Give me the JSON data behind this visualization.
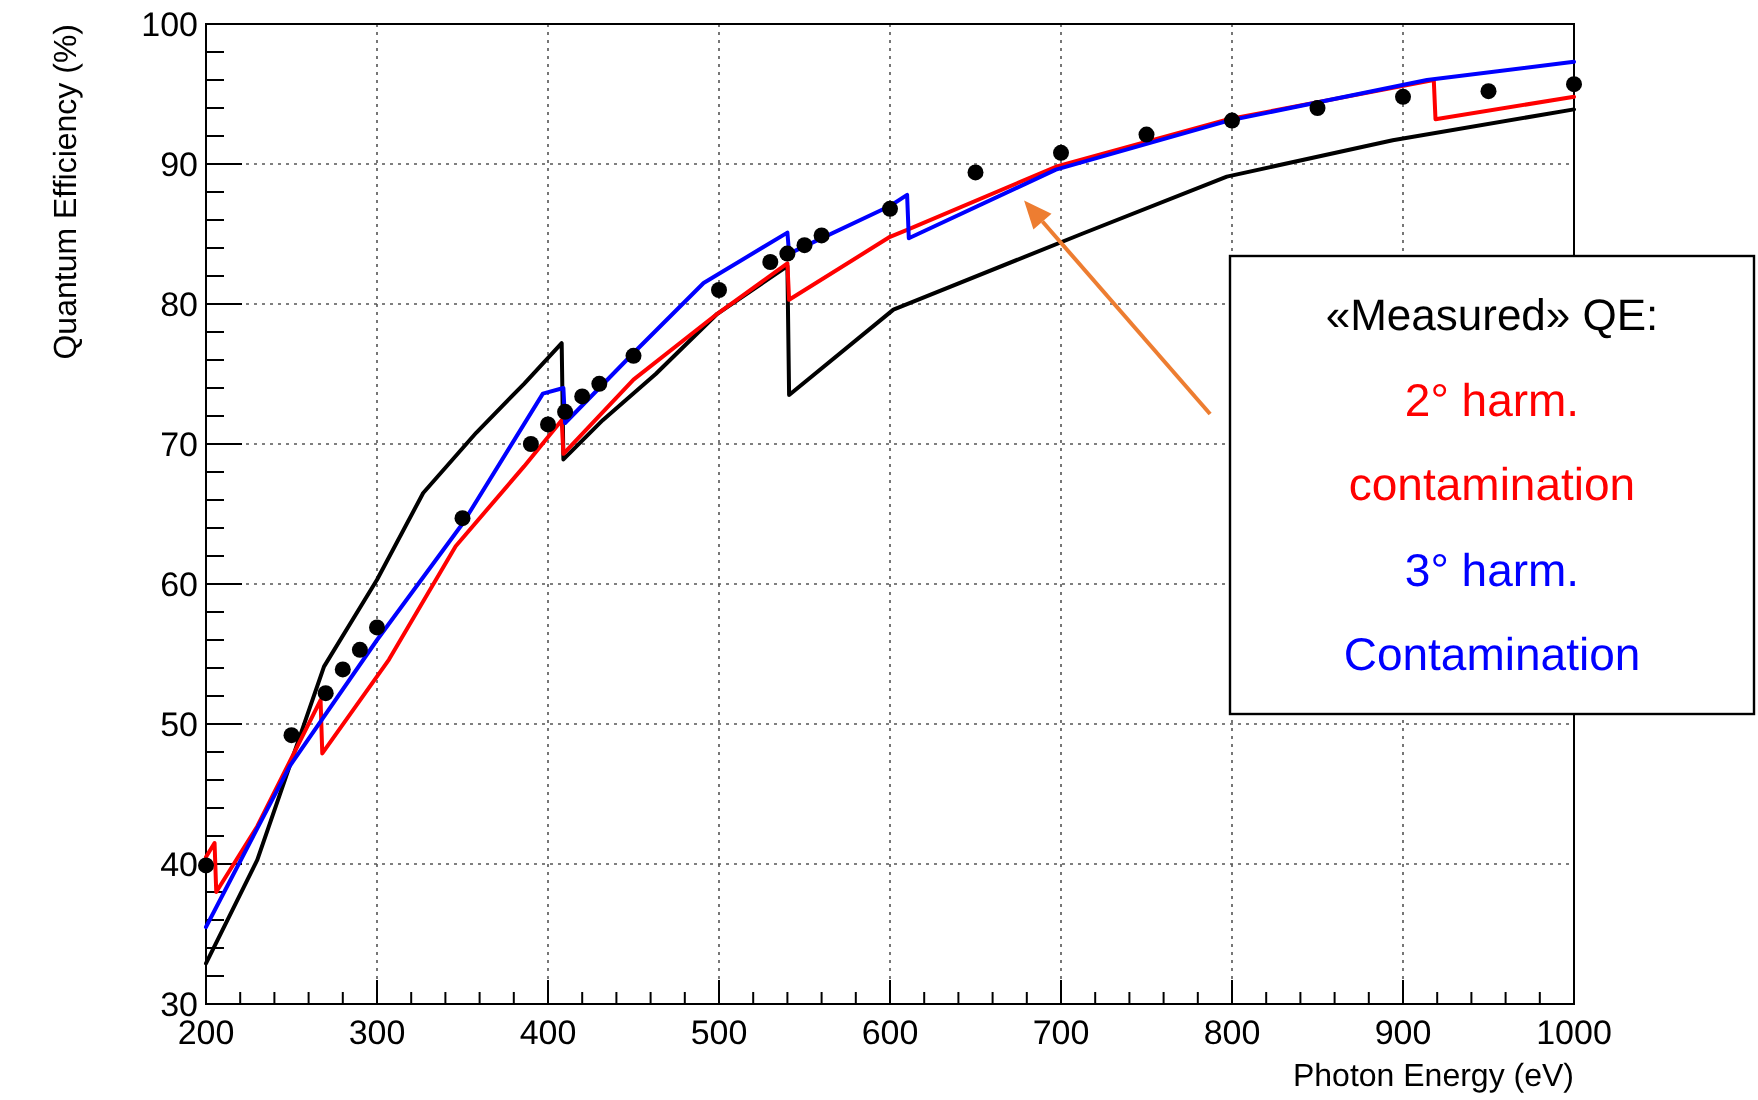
{
  "chart_data": {
    "type": "line",
    "xlabel": "Photon Energy (eV)",
    "ylabel": "Quantum Efficiency (%)",
    "legend_title": "«Measured» QE:",
    "xlim": [
      200,
      1000
    ],
    "ylim": [
      30,
      100
    ],
    "xticks": [
      200,
      300,
      400,
      500,
      600,
      700,
      800,
      900,
      1000
    ],
    "yticks": [
      30,
      40,
      50,
      60,
      70,
      80,
      90,
      100
    ],
    "grid": true,
    "legend": "right",
    "line_style": "solid",
    "series": [
      {
        "color": "#000000",
        "x": [
          200,
          230,
          269,
          300,
          327,
          358,
          386,
          408,
          409,
          432,
          463,
          499,
          540,
          541,
          602,
          712,
          797,
          894,
          1000
        ],
        "values": [
          32.9,
          40.3,
          54.1,
          60.3,
          66.5,
          70.8,
          74.3,
          77.2,
          68.9,
          71.7,
          75.0,
          79.3,
          82.7,
          73.5,
          79.6,
          85.0,
          89.1,
          91.7,
          93.9
        ]
      },
      {
        "name": "2° harm. contamination",
        "color": "#ff0000",
        "x": [
          200,
          205,
          206,
          230,
          267,
          268,
          307,
          346,
          386,
          408,
          409,
          450,
          499,
          540,
          541,
          600,
          610,
          697,
          798,
          914,
          918,
          919,
          1000
        ],
        "values": [
          40.5,
          41.5,
          38.0,
          42.7,
          51.7,
          47.9,
          54.6,
          62.7,
          68.4,
          71.7,
          69.3,
          74.6,
          79.3,
          82.9,
          80.3,
          84.8,
          85.3,
          89.8,
          93.2,
          95.9,
          96.0,
          93.2,
          94.8
        ]
      },
      {
        "name": "3° harm. Contamination",
        "color": "#0000ff",
        "x": [
          200,
          249,
          300,
          350,
          397,
          409,
          410,
          450,
          491,
          540,
          541,
          600,
          610,
          611,
          697,
          798,
          914,
          1000
        ],
        "values": [
          35.5,
          47.0,
          56.0,
          64.3,
          73.6,
          74.0,
          71.5,
          76.5,
          81.5,
          85.1,
          83.6,
          87.0,
          87.8,
          84.7,
          89.6,
          93.1,
          96.0,
          97.3
        ]
      },
      {
        "type": "scatter",
        "color": "#000000",
        "marker": "circle",
        "x": [
          200,
          250,
          270,
          280,
          290,
          300,
          350,
          390,
          400,
          410,
          420,
          430,
          450,
          500,
          530,
          540,
          550,
          560,
          600,
          650,
          700,
          750,
          800,
          850,
          900,
          950,
          1000
        ],
        "values": [
          39.9,
          49.2,
          52.2,
          53.9,
          55.3,
          56.9,
          64.7,
          70.0,
          71.4,
          72.3,
          73.4,
          74.3,
          76.3,
          81.0,
          83.0,
          83.6,
          84.2,
          84.9,
          86.8,
          89.4,
          90.8,
          92.1,
          93.1,
          94.0,
          94.8,
          95.2,
          95.7
        ]
      }
    ]
  }
}
